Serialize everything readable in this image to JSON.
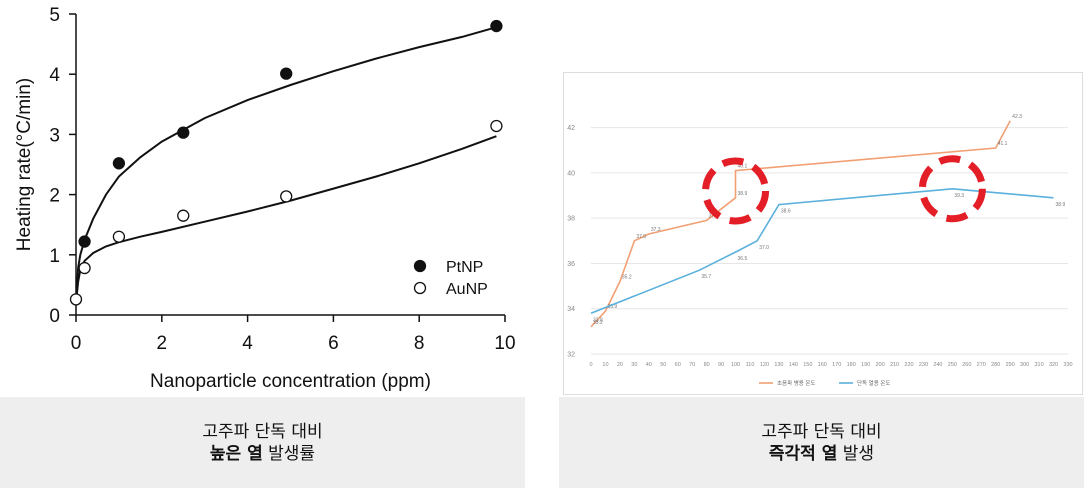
{
  "chart_data": [
    {
      "type": "scatter",
      "xlabel": "Nanoparticle concentration (ppm)",
      "ylabel": "Heating rate(°C/min)",
      "xlim": [
        0,
        10
      ],
      "ylim": [
        0,
        5
      ],
      "x_ticks": [
        "0",
        "2",
        "4",
        "6",
        "8",
        "10"
      ],
      "y_ticks": [
        "0",
        "1",
        "2",
        "3",
        "4",
        "5"
      ],
      "legend_position": "bottom-right",
      "grid": false,
      "series": [
        {
          "name": "PtNP",
          "marker": "filled-circle",
          "color": "#111111",
          "points": [
            [
              0.2,
              1.22
            ],
            [
              1.0,
              2.52
            ],
            [
              2.5,
              3.03
            ],
            [
              4.9,
              4.01
            ],
            [
              9.8,
              4.8
            ]
          ],
          "fit_curve": [
            [
              0.0,
              0.2
            ],
            [
              0.05,
              0.78
            ],
            [
              0.1,
              1.0
            ],
            [
              0.2,
              1.25
            ],
            [
              0.4,
              1.6
            ],
            [
              0.7,
              2.0
            ],
            [
              1.0,
              2.3
            ],
            [
              1.5,
              2.62
            ],
            [
              2.0,
              2.88
            ],
            [
              3.0,
              3.27
            ],
            [
              4.0,
              3.57
            ],
            [
              5.0,
              3.82
            ],
            [
              6.0,
              4.05
            ],
            [
              7.0,
              4.26
            ],
            [
              8.0,
              4.45
            ],
            [
              9.0,
              4.62
            ],
            [
              9.8,
              4.78
            ]
          ]
        },
        {
          "name": "AuNP",
          "marker": "open-circle",
          "color": "#111111",
          "points": [
            [
              0.0,
              0.26
            ],
            [
              0.2,
              0.78
            ],
            [
              1.0,
              1.3
            ],
            [
              2.5,
              1.65
            ],
            [
              4.9,
              1.97
            ],
            [
              9.8,
              3.14
            ]
          ],
          "fit_curve": [
            [
              0.0,
              0.2
            ],
            [
              0.05,
              0.55
            ],
            [
              0.1,
              0.75
            ],
            [
              0.2,
              0.9
            ],
            [
              0.4,
              1.03
            ],
            [
              0.7,
              1.14
            ],
            [
              1.0,
              1.21
            ],
            [
              1.5,
              1.3
            ],
            [
              2.0,
              1.38
            ],
            [
              3.0,
              1.55
            ],
            [
              4.0,
              1.72
            ],
            [
              5.0,
              1.9
            ],
            [
              6.0,
              2.1
            ],
            [
              7.0,
              2.3
            ],
            [
              8.0,
              2.52
            ],
            [
              9.0,
              2.76
            ],
            [
              9.8,
              2.97
            ]
          ]
        }
      ]
    },
    {
      "type": "line",
      "xlim": [
        0,
        330
      ],
      "ylim": [
        32,
        43
      ],
      "x_ticks": [
        "0",
        "10",
        "20",
        "30",
        "40",
        "50",
        "60",
        "70",
        "80",
        "90",
        "100",
        "110",
        "120",
        "130",
        "140",
        "150",
        "160",
        "170",
        "180",
        "190",
        "200",
        "210",
        "220",
        "230",
        "240",
        "250",
        "260",
        "270",
        "280",
        "290",
        "300",
        "310",
        "320",
        "330"
      ],
      "y_ticks": [
        "32",
        "34",
        "36",
        "38",
        "40",
        "42"
      ],
      "legend_position": "bottom",
      "grid": true,
      "series": [
        {
          "name": "초음파 병용 온도",
          "color": "#f2a073",
          "points": [
            [
              0,
              33.2
            ],
            [
              10,
              33.9
            ],
            [
              20,
              35.2
            ],
            [
              30,
              37.0
            ],
            [
              40,
              37.3
            ],
            [
              80,
              37.9
            ],
            [
              100,
              38.9
            ],
            [
              100,
              40.1
            ],
            [
              280,
              41.1
            ],
            [
              290,
              42.3
            ]
          ]
        },
        {
          "name": "단독 열용 온도",
          "color": "#5ab0dc",
          "points": [
            [
              0,
              33.8
            ],
            [
              75,
              35.7
            ],
            [
              100,
              36.5
            ],
            [
              115,
              37.0
            ],
            [
              130,
              38.6
            ],
            [
              250,
              39.3
            ],
            [
              320,
              38.9
            ]
          ]
        }
      ],
      "highlight_circles": [
        {
          "x": 100,
          "y": 39.2,
          "color": "#e41e26"
        },
        {
          "x": 250,
          "y": 39.3,
          "color": "#e41e26"
        }
      ]
    }
  ],
  "captions": [
    {
      "line1": "고주파 단독 대비",
      "line2_bold": "높은 열",
      "line2_rest": " 발생률"
    },
    {
      "line1": "고주파 단독 대비",
      "line2_bold": "즉각적 열",
      "line2_rest": " 발생"
    }
  ]
}
